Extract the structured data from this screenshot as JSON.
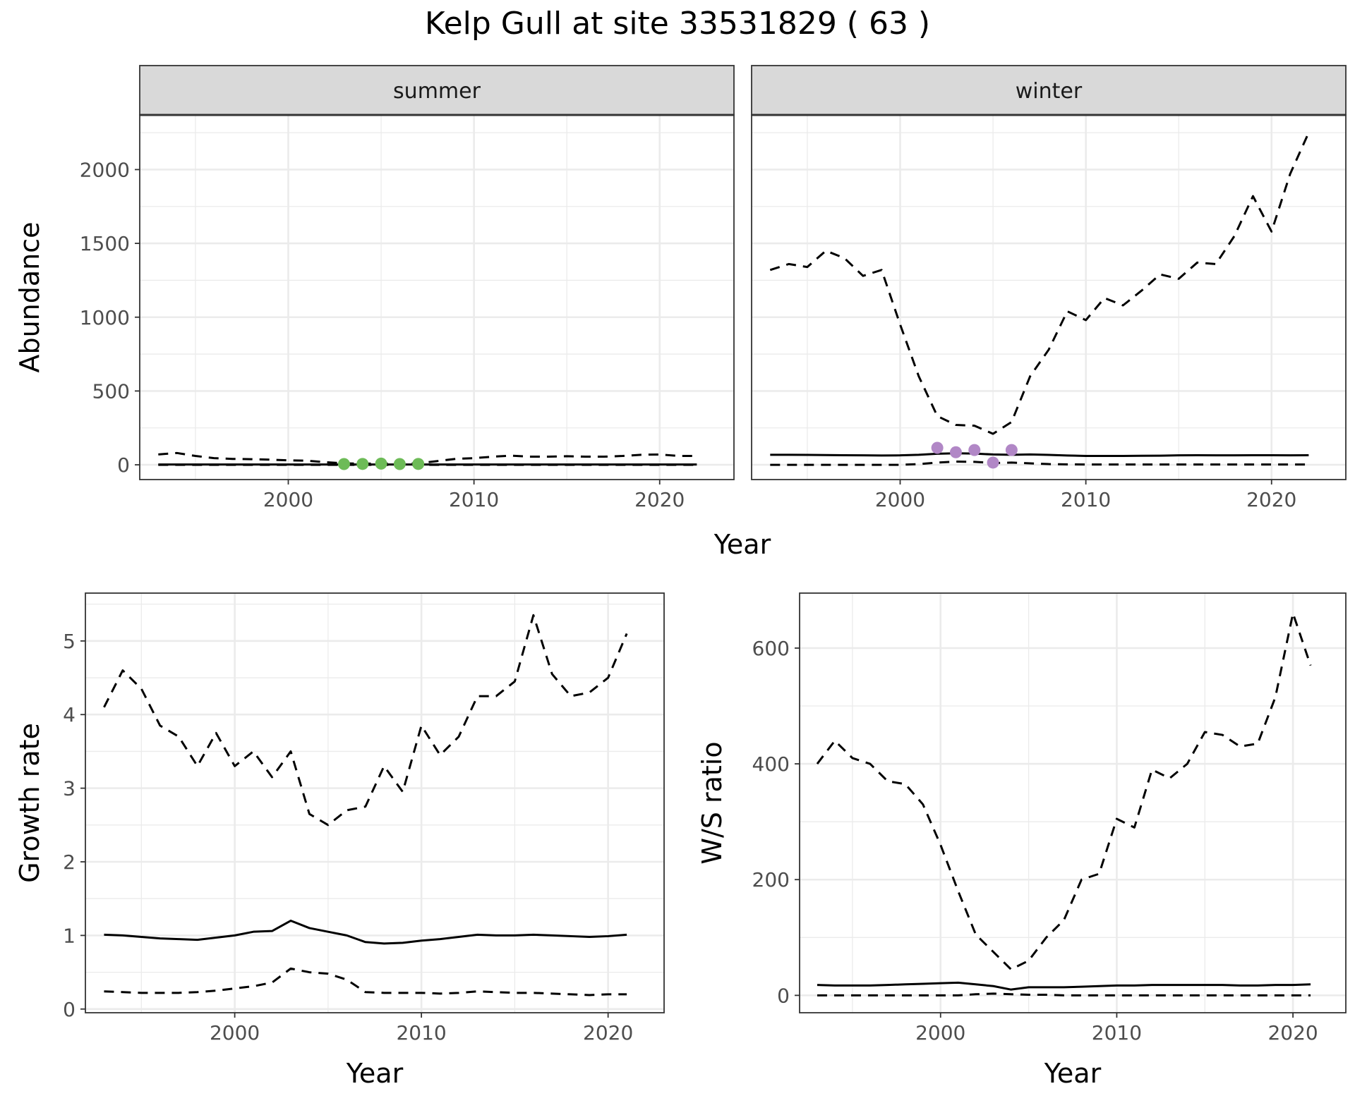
{
  "title": "Kelp Gull at site 33531829 ( 63 )",
  "colors": {
    "summer_points": "#6dbb57",
    "winter_points": "#b187c6",
    "strip_bg": "#d9d9d9"
  },
  "chart_data": [
    {
      "id": "abundance",
      "type": "line",
      "facets": [
        "summer",
        "winter"
      ],
      "xlabel": "Year",
      "ylabel": "Abundance",
      "xlim": [
        1992,
        2024
      ],
      "ylim": [
        -100,
        2370
      ],
      "x_ticks": [
        2000,
        2010,
        2020
      ],
      "y_ticks": [
        0,
        500,
        1000,
        1500,
        2000
      ],
      "grid": true,
      "panels": [
        {
          "strip": "summer",
          "x": [
            1993,
            1994,
            1995,
            1996,
            1997,
            1998,
            1999,
            2000,
            2001,
            2002,
            2003,
            2004,
            2005,
            2006,
            2007,
            2008,
            2009,
            2010,
            2011,
            2012,
            2013,
            2014,
            2015,
            2016,
            2017,
            2018,
            2019,
            2020,
            2021,
            2022
          ],
          "mean": [
            2,
            2,
            2,
            2,
            2,
            2,
            2,
            2,
            2,
            2,
            2,
            2,
            2,
            2,
            2,
            2,
            2,
            2,
            2,
            2,
            2,
            2,
            2,
            2,
            2,
            2,
            2,
            2,
            2,
            2
          ],
          "upper": [
            70,
            80,
            60,
            45,
            40,
            38,
            35,
            30,
            28,
            18,
            10,
            8,
            8,
            8,
            10,
            25,
            40,
            45,
            55,
            62,
            55,
            55,
            58,
            55,
            55,
            60,
            68,
            70,
            60,
            60
          ],
          "lower": [
            0,
            0,
            0,
            0,
            0,
            0,
            0,
            0,
            0,
            0,
            0,
            0,
            0,
            0,
            0,
            0,
            0,
            0,
            0,
            0,
            0,
            0,
            0,
            0,
            0,
            0,
            0,
            0,
            0,
            0
          ],
          "observed_x": [
            2003,
            2004,
            2005,
            2006,
            2007
          ],
          "observed_y": [
            5,
            6,
            8,
            5,
            6
          ]
        },
        {
          "strip": "winter",
          "x": [
            1993,
            1994,
            1995,
            1996,
            1997,
            1998,
            1999,
            2000,
            2001,
            2002,
            2003,
            2004,
            2005,
            2006,
            2007,
            2008,
            2009,
            2010,
            2011,
            2012,
            2013,
            2014,
            2015,
            2016,
            2017,
            2018,
            2019,
            2020,
            2021,
            2022
          ],
          "mean": [
            68,
            68,
            67,
            66,
            65,
            64,
            63,
            64,
            68,
            75,
            78,
            76,
            70,
            68,
            70,
            67,
            63,
            60,
            60,
            60,
            61,
            62,
            64,
            65,
            64,
            64,
            65,
            65,
            64,
            65
          ],
          "upper": [
            1320,
            1360,
            1340,
            1450,
            1400,
            1280,
            1320,
            950,
            600,
            330,
            270,
            265,
            210,
            290,
            600,
            780,
            1040,
            980,
            1130,
            1080,
            1180,
            1290,
            1260,
            1370,
            1360,
            1550,
            1820,
            1580,
            1970,
            2250
          ],
          "lower": [
            0,
            0,
            0,
            0,
            0,
            0,
            0,
            0,
            5,
            15,
            22,
            20,
            12,
            15,
            10,
            5,
            3,
            2,
            2,
            2,
            2,
            2,
            2,
            2,
            2,
            2,
            2,
            2,
            2,
            2
          ],
          "observed_x": [
            2002,
            2003,
            2004,
            2005,
            2006
          ],
          "observed_y": [
            115,
            85,
            100,
            15,
            100
          ]
        }
      ]
    },
    {
      "id": "growth",
      "type": "line",
      "xlabel": "Year",
      "ylabel": "Growth rate",
      "xlim": [
        1992,
        2023
      ],
      "ylim": [
        -0.05,
        5.65
      ],
      "x_ticks": [
        2000,
        2010,
        2020
      ],
      "y_ticks": [
        0,
        1,
        2,
        3,
        4,
        5
      ],
      "grid": true,
      "x": [
        1993,
        1994,
        1995,
        1996,
        1997,
        1998,
        1999,
        2000,
        2001,
        2002,
        2003,
        2004,
        2005,
        2006,
        2007,
        2008,
        2009,
        2010,
        2011,
        2012,
        2013,
        2014,
        2015,
        2016,
        2017,
        2018,
        2019,
        2020,
        2021
      ],
      "mean": [
        1.01,
        1.0,
        0.98,
        0.96,
        0.95,
        0.94,
        0.97,
        1.0,
        1.05,
        1.06,
        1.2,
        1.1,
        1.05,
        1.0,
        0.91,
        0.89,
        0.9,
        0.93,
        0.95,
        0.98,
        1.01,
        1.0,
        1.0,
        1.01,
        1.0,
        0.99,
        0.98,
        0.99,
        1.01
      ],
      "upper": [
        4.1,
        4.6,
        4.35,
        3.85,
        3.7,
        3.3,
        3.75,
        3.3,
        3.5,
        3.15,
        3.5,
        2.65,
        2.5,
        2.7,
        2.75,
        3.3,
        2.95,
        3.85,
        3.45,
        3.7,
        4.25,
        4.25,
        4.45,
        5.35,
        4.55,
        4.25,
        4.3,
        4.5,
        5.1
      ],
      "lower": [
        0.24,
        0.23,
        0.22,
        0.22,
        0.22,
        0.23,
        0.25,
        0.28,
        0.31,
        0.36,
        0.55,
        0.5,
        0.48,
        0.4,
        0.23,
        0.22,
        0.22,
        0.22,
        0.21,
        0.22,
        0.24,
        0.23,
        0.22,
        0.22,
        0.21,
        0.2,
        0.19,
        0.2,
        0.2
      ]
    },
    {
      "id": "ws_ratio",
      "type": "line",
      "xlabel": "Year",
      "ylabel": "W/S ratio",
      "xlim": [
        1992,
        2023
      ],
      "ylim": [
        -30,
        695
      ],
      "x_ticks": [
        2000,
        2010,
        2020
      ],
      "y_ticks": [
        0,
        200,
        400,
        600
      ],
      "grid": true,
      "x": [
        1993,
        1994,
        1995,
        1996,
        1997,
        1998,
        1999,
        2000,
        2001,
        2002,
        2003,
        2004,
        2005,
        2006,
        2007,
        2008,
        2009,
        2010,
        2011,
        2012,
        2013,
        2014,
        2015,
        2016,
        2017,
        2018,
        2019,
        2020,
        2021
      ],
      "mean": [
        18,
        17,
        17,
        17,
        18,
        19,
        20,
        21,
        22,
        19,
        16,
        10,
        14,
        14,
        14,
        15,
        16,
        17,
        17,
        18,
        18,
        18,
        18,
        18,
        17,
        17,
        18,
        18,
        19
      ],
      "upper": [
        400,
        440,
        410,
        400,
        370,
        365,
        330,
        260,
        180,
        105,
        75,
        45,
        60,
        100,
        130,
        200,
        210,
        305,
        290,
        390,
        375,
        400,
        455,
        450,
        430,
        435,
        515,
        660,
        570
      ],
      "lower": [
        0,
        0,
        0,
        0,
        0,
        0,
        0,
        0,
        0,
        2,
        3,
        2,
        1,
        1,
        0,
        0,
        0,
        0,
        0,
        0,
        0,
        0,
        0,
        0,
        0,
        0,
        0,
        0,
        0
      ]
    }
  ]
}
